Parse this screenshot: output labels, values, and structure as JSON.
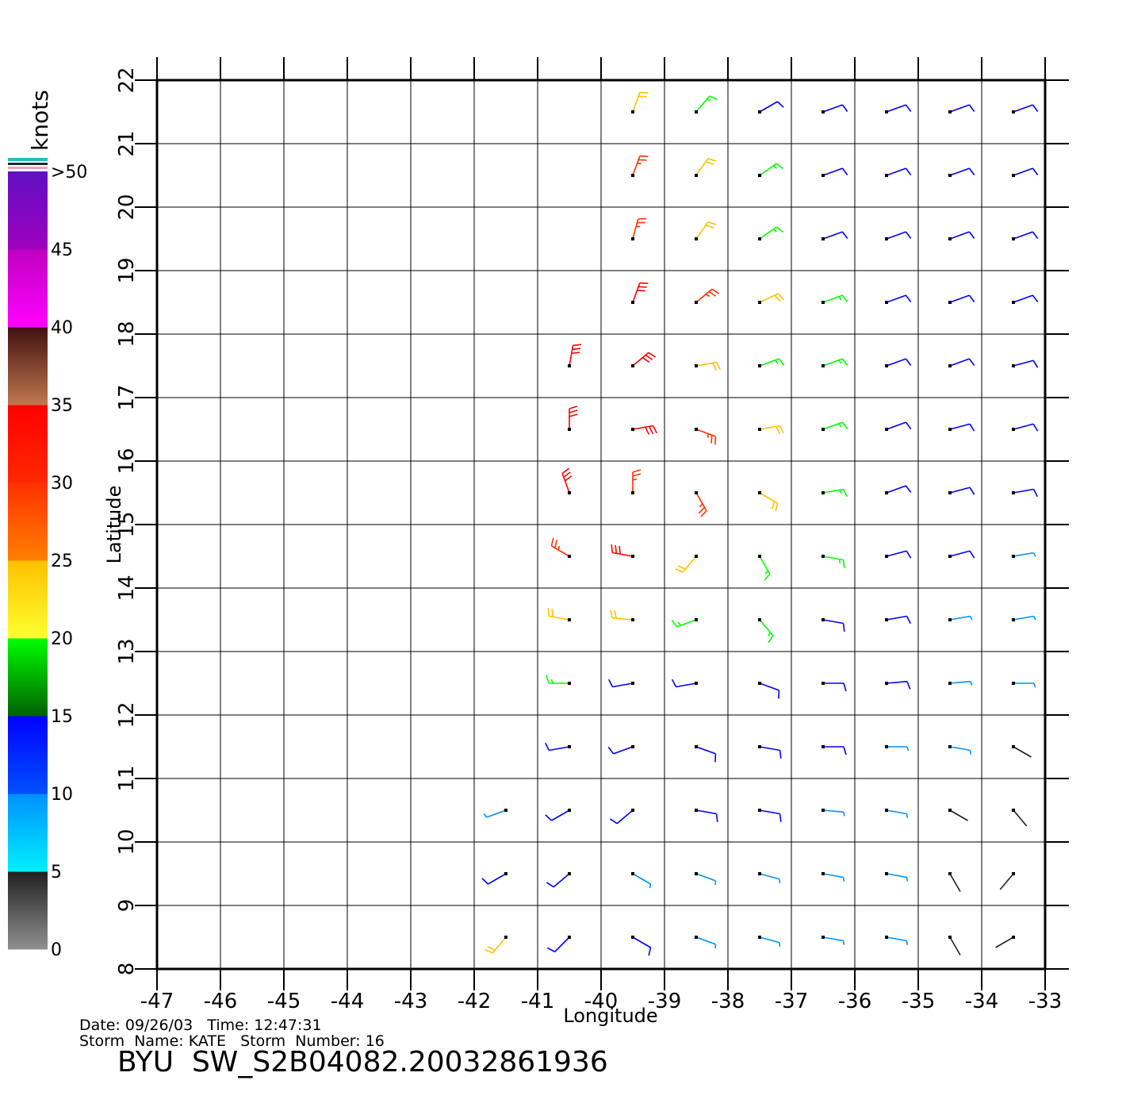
{
  "chart_data": {
    "type": "wind_barb",
    "xlabel": "Longitude",
    "ylabel": "Latitude",
    "xlim": [
      -47,
      -33
    ],
    "ylim": [
      8,
      22
    ],
    "xticks": [
      -47,
      -46,
      -45,
      -44,
      -43,
      -42,
      -41,
      -40,
      -39,
      -38,
      -37,
      -36,
      -35,
      -34,
      -33
    ],
    "yticks": [
      8,
      9,
      10,
      11,
      12,
      13,
      14,
      15,
      16,
      17,
      18,
      19,
      20,
      21,
      22
    ],
    "grid": true,
    "footer": [
      "Date: 09/26/03   Time: 12:47:31",
      "Storm  Name: KATE   Storm  Number: 16"
    ],
    "title": "BYU  SW_S2B04082.20032861936",
    "colorbar": {
      "label": "knots",
      "ticks": [
        0,
        5,
        10,
        15,
        20,
        25,
        30,
        35,
        40,
        45,
        {
          "value": 50,
          "label": ">50"
        }
      ],
      "colors": [
        [
          "#909090",
          "#202020"
        ],
        [
          "#00f0ff",
          "#0090ff"
        ],
        [
          "#0050ff",
          "#0000ff"
        ],
        [
          "#006000",
          "#00ff00"
        ],
        [
          "#ffff30",
          "#ffc000"
        ],
        [
          "#ff8000",
          "#ff3000"
        ],
        [
          "#ff2800",
          "#ff0000"
        ],
        [
          "#c07850",
          "#401010"
        ],
        [
          "#ff00ff",
          "#c000c0"
        ],
        [
          "#a000c0",
          "#6010c0"
        ]
      ]
    },
    "wind": {
      "lons": [
        -41.5,
        -40.5,
        -39.5,
        -38.5,
        -37.5,
        -36.5,
        -35.5,
        -34.5,
        -33.5
      ],
      "rows": [
        {
          "lat": 21.5,
          "speed": [
            null,
            null,
            22,
            18,
            14,
            12,
            11,
            11,
            11
          ],
          "dir": [
            null,
            null,
            200,
            220,
            240,
            250,
            250,
            250,
            250
          ]
        },
        {
          "lat": 20.5,
          "speed": [
            null,
            null,
            25,
            20,
            15,
            12,
            11,
            11,
            10
          ],
          "dir": [
            null,
            null,
            200,
            215,
            235,
            250,
            250,
            250,
            250
          ]
        },
        {
          "lat": 19.5,
          "speed": [
            null,
            null,
            28,
            24,
            18,
            14,
            12,
            11,
            10
          ],
          "dir": [
            null,
            null,
            195,
            215,
            235,
            250,
            250,
            250,
            250
          ]
        },
        {
          "lat": 18.5,
          "speed": [
            null,
            null,
            32,
            26,
            20,
            15,
            12,
            11,
            10
          ],
          "dir": [
            null,
            null,
            200,
            230,
            245,
            250,
            250,
            250,
            250
          ]
        },
        {
          "lat": 17.5,
          "speed": [
            null,
            33,
            30,
            24,
            19,
            15,
            12,
            11,
            10
          ],
          "dir": [
            null,
            190,
            230,
            260,
            250,
            250,
            250,
            250,
            255
          ]
        },
        {
          "lat": 16.5,
          "speed": [
            null,
            34,
            30,
            26,
            22,
            17,
            14,
            11,
            10
          ],
          "dir": [
            null,
            180,
            260,
            290,
            260,
            250,
            250,
            255,
            255
          ]
        },
        {
          "lat": 15.5,
          "speed": [
            null,
            30,
            26,
            28,
            22,
            17,
            13,
            11,
            10
          ],
          "dir": [
            null,
            160,
            180,
            330,
            300,
            260,
            250,
            255,
            260
          ]
        },
        {
          "lat": 14.5,
          "speed": [
            null,
            27,
            32,
            24,
            18,
            16,
            12,
            10,
            9
          ],
          "dir": [
            null,
            120,
            100,
            40,
            330,
            280,
            255,
            255,
            260
          ]
        },
        {
          "lat": 13.5,
          "speed": [
            null,
            24,
            22,
            18,
            16,
            13,
            11,
            9,
            8
          ],
          "dir": [
            null,
            100,
            95,
            70,
            320,
            280,
            260,
            260,
            260
          ]
        },
        {
          "lat": 12.5,
          "speed": [
            null,
            18,
            14,
            13,
            12,
            11,
            10,
            9,
            8
          ],
          "dir": [
            null,
            90,
            80,
            80,
            290,
            270,
            265,
            265,
            270
          ]
        },
        {
          "lat": 11.5,
          "speed": [
            null,
            12,
            12,
            11,
            11,
            10,
            9,
            7,
            4
          ],
          "dir": [
            null,
            80,
            70,
            290,
            280,
            270,
            270,
            280,
            300
          ]
        },
        {
          "lat": 10.5,
          "speed": [
            9,
            12,
            11,
            11,
            10,
            9,
            7,
            4,
            3
          ],
          "dir": [
            70,
            60,
            50,
            280,
            280,
            275,
            280,
            300,
            320
          ]
        },
        {
          "lat": 9.5,
          "speed": [
            10,
            12,
            9,
            8,
            9,
            8,
            6,
            3,
            3
          ],
          "dir": [
            60,
            50,
            300,
            290,
            285,
            280,
            280,
            330,
            40
          ]
        },
        {
          "lat": 8.5,
          "speed": [
            20,
            11,
            12,
            9,
            8,
            7,
            6,
            3,
            4
          ],
          "dir": [
            40,
            45,
            300,
            290,
            285,
            280,
            280,
            330,
            60
          ]
        }
      ]
    }
  }
}
